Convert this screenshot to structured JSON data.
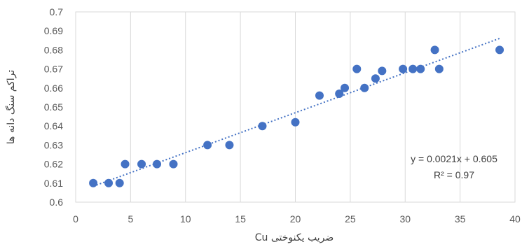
{
  "chart_data": {
    "type": "scatter",
    "xlabel": "ضریب یکنوختی Cu",
    "ylabel": "تراکم سنگ دانه ها",
    "xlim": [
      0,
      40
    ],
    "ylim": [
      0.6,
      0.7
    ],
    "x_ticks": [
      "0",
      "5",
      "10",
      "15",
      "20",
      "25",
      "30",
      "35",
      "40"
    ],
    "y_ticks": [
      "0.6",
      "0.61",
      "0.62",
      "0.63",
      "0.64",
      "0.65",
      "0.66",
      "0.67",
      "0.68",
      "0.69",
      "0.7"
    ],
    "grid": "vertical",
    "marker_color": "#4472c4",
    "trendline_color": "#4472c4",
    "series": [
      {
        "points": [
          {
            "x": 1.6,
            "y": 0.61
          },
          {
            "x": 3.0,
            "y": 0.61
          },
          {
            "x": 4.0,
            "y": 0.61
          },
          {
            "x": 4.5,
            "y": 0.62
          },
          {
            "x": 6.0,
            "y": 0.62
          },
          {
            "x": 7.4,
            "y": 0.62
          },
          {
            "x": 8.9,
            "y": 0.62
          },
          {
            "x": 12.0,
            "y": 0.63
          },
          {
            "x": 14.0,
            "y": 0.63
          },
          {
            "x": 17.0,
            "y": 0.64
          },
          {
            "x": 20.0,
            "y": 0.642
          },
          {
            "x": 22.2,
            "y": 0.656
          },
          {
            "x": 24.0,
            "y": 0.657
          },
          {
            "x": 24.5,
            "y": 0.66
          },
          {
            "x": 25.6,
            "y": 0.67
          },
          {
            "x": 26.3,
            "y": 0.66
          },
          {
            "x": 27.3,
            "y": 0.665
          },
          {
            "x": 27.9,
            "y": 0.669
          },
          {
            "x": 29.8,
            "y": 0.67
          },
          {
            "x": 30.7,
            "y": 0.67
          },
          {
            "x": 31.4,
            "y": 0.67
          },
          {
            "x": 32.7,
            "y": 0.68
          },
          {
            "x": 33.1,
            "y": 0.67
          },
          {
            "x": 38.6,
            "y": 0.68
          }
        ]
      }
    ],
    "trendline": {
      "slope": 0.0021,
      "intercept": 0.605,
      "x_range": [
        1.6,
        38.6
      ]
    },
    "annotations": [
      "y = 0.0021x + 0.605",
      "R² = 0.97"
    ]
  }
}
